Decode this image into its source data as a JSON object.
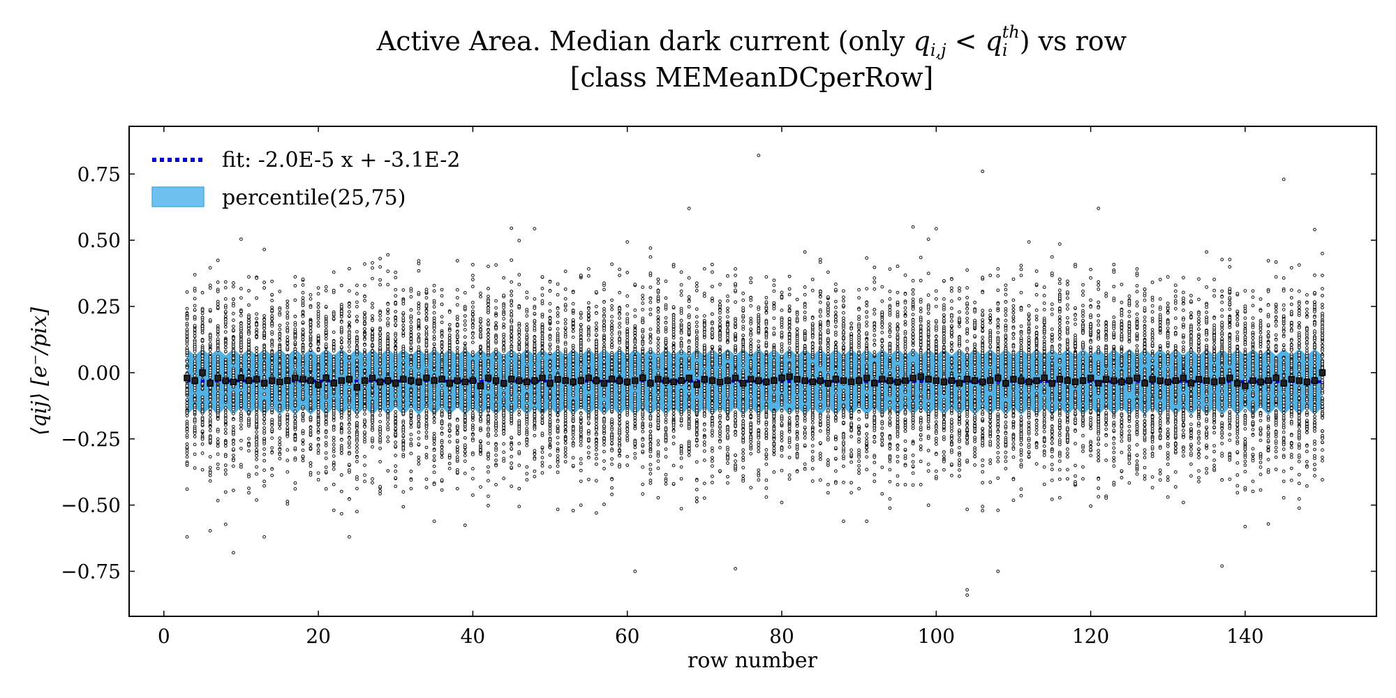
{
  "chart_data": {
    "type": "scatter",
    "title_pre": "Active Area. Median dark current (only ",
    "title_q": "q",
    "title_q_sub": "i,j",
    "title_lt": " < ",
    "title_q2": "q",
    "title_q2_sub": "i",
    "title_q2_sup": "th",
    "title_post": ") vs row",
    "subtitle": "[class MEMeanDCperRow]",
    "xlabel": "row number",
    "ylabel": "⟨qij⟩ [e⁻/pix]",
    "xlim": [
      -4.5,
      157
    ],
    "ylim": [
      -0.92,
      0.93
    ],
    "xticks": [
      0,
      20,
      40,
      60,
      80,
      100,
      120,
      140
    ],
    "xtick_labels": [
      "0",
      "20",
      "40",
      "60",
      "80",
      "100",
      "120",
      "140"
    ],
    "yticks": [
      0.75,
      0.5,
      0.25,
      0.0,
      -0.25,
      -0.5,
      -0.75
    ],
    "ytick_labels": [
      "0.75",
      "0.50",
      "0.25",
      "0.00",
      "−0.25",
      "−0.50",
      "−0.75"
    ],
    "rows": {
      "start": 3,
      "end": 150,
      "step": 1
    },
    "fit": {
      "label": "fit: -2.0E-5 x + -3.1E-2",
      "slope": -2e-05,
      "intercept": -0.031,
      "color": "#0000cc"
    },
    "band": {
      "label": "percentile(25,75)",
      "upper": 0.09,
      "lower": -0.16,
      "color": "#4aaee3"
    },
    "medians": [
      -0.02,
      -0.03,
      0.0,
      -0.04,
      -0.02,
      -0.03,
      -0.035,
      -0.02,
      -0.03,
      -0.025,
      -0.04,
      -0.03,
      -0.035,
      -0.03,
      -0.02,
      -0.025,
      -0.03,
      -0.045,
      -0.02,
      -0.04,
      -0.03,
      -0.025,
      -0.055,
      -0.03,
      -0.02,
      -0.035,
      -0.03,
      -0.04,
      -0.025,
      -0.03,
      -0.035,
      -0.02,
      -0.03,
      -0.025,
      -0.04,
      -0.03,
      -0.035,
      -0.03,
      -0.05,
      -0.02,
      -0.03,
      -0.04,
      -0.025,
      -0.03,
      -0.035,
      -0.03,
      -0.02,
      -0.04,
      -0.025,
      -0.03,
      -0.035,
      -0.03,
      -0.02,
      -0.03,
      -0.04,
      -0.025,
      -0.03,
      -0.035,
      -0.03,
      -0.02,
      -0.04,
      -0.025,
      -0.03,
      -0.035,
      -0.03,
      -0.02,
      -0.045,
      -0.025,
      -0.03,
      -0.035,
      -0.03,
      -0.02,
      -0.04,
      -0.025,
      -0.03,
      -0.035,
      -0.03,
      -0.02,
      -0.015,
      -0.025,
      -0.03,
      -0.035,
      -0.03,
      -0.04,
      -0.025,
      -0.03,
      -0.035,
      -0.03,
      -0.02,
      -0.04,
      -0.025,
      -0.03,
      -0.035,
      -0.03,
      -0.02,
      -0.015,
      -0.025,
      -0.03,
      -0.035,
      -0.03,
      -0.04,
      -0.025,
      -0.03,
      -0.035,
      -0.03,
      -0.02,
      -0.04,
      -0.025,
      -0.03,
      -0.035,
      -0.03,
      -0.02,
      -0.04,
      -0.025,
      -0.03,
      -0.035,
      -0.03,
      -0.02,
      -0.04,
      -0.025,
      -0.03,
      -0.035,
      -0.03,
      -0.02,
      -0.04,
      -0.025,
      -0.03,
      -0.035,
      -0.03,
      -0.02,
      -0.04,
      -0.025,
      -0.03,
      -0.035,
      -0.03,
      -0.02,
      -0.04,
      -0.05,
      -0.03,
      -0.035,
      -0.03,
      -0.02,
      -0.04,
      -0.025,
      -0.03,
      -0.035,
      -0.03,
      -0.0
    ],
    "scatter_points_per_row": 100,
    "scatter_sigma": 0.16,
    "outliers": [
      {
        "x": 77,
        "y": 0.82
      },
      {
        "x": 106,
        "y": 0.76
      },
      {
        "x": 145,
        "y": 0.73
      },
      {
        "x": 104,
        "y": -0.82
      },
      {
        "x": 104,
        "y": -0.84
      },
      {
        "x": 61,
        "y": -0.75
      },
      {
        "x": 74,
        "y": -0.74
      },
      {
        "x": 108,
        "y": -0.75
      },
      {
        "x": 137,
        "y": -0.73
      },
      {
        "x": 9,
        "y": -0.68
      },
      {
        "x": 3,
        "y": -0.62
      }
    ]
  }
}
